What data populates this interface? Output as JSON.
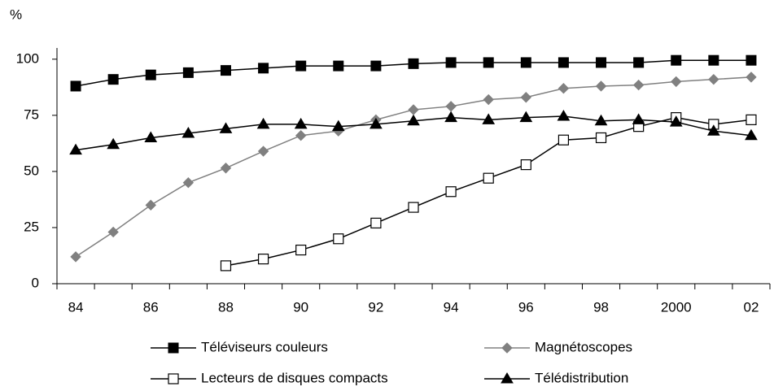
{
  "chart_data": {
    "type": "line",
    "ylabel": "%",
    "categories": [
      "84",
      null,
      "86",
      null,
      "88",
      null,
      "90",
      null,
      "92",
      null,
      "94",
      null,
      "96",
      null,
      "98",
      null,
      "2000",
      null,
      "02"
    ],
    "ylim": [
      0,
      105
    ],
    "yticks": [
      0,
      25,
      50,
      75,
      100
    ],
    "grid": false,
    "legend": "bottom",
    "series": [
      {
        "name": "Téléviseurs couleurs",
        "color": "#000000",
        "marker": "square",
        "values": [
          88,
          91,
          93,
          94,
          95,
          96,
          97,
          97,
          97,
          98,
          98.5,
          98.5,
          98.5,
          98.5,
          98.5,
          98.5,
          99.5,
          99.5,
          99.5
        ]
      },
      {
        "name": "Magnétoscopes",
        "color": "#808080",
        "marker": "diamond",
        "values": [
          12,
          23,
          35,
          45,
          51.5,
          59,
          66,
          68,
          73,
          77.5,
          79,
          82,
          83,
          87,
          88,
          88.5,
          90,
          91,
          92
        ]
      },
      {
        "name": "Lecteurs de disques compacts",
        "color": "#000000",
        "marker": "square-open",
        "values": [
          null,
          null,
          null,
          null,
          8,
          11,
          15,
          20,
          27,
          34,
          41,
          47,
          53,
          64,
          65,
          70,
          74,
          71,
          73
        ]
      },
      {
        "name": "Télédistribution",
        "color": "#000000",
        "marker": "triangle",
        "values": [
          59.5,
          62,
          65,
          67,
          69,
          71,
          71,
          70,
          71,
          72.5,
          74,
          73,
          74,
          74.6,
          72.5,
          73,
          72,
          68,
          66
        ]
      }
    ]
  }
}
